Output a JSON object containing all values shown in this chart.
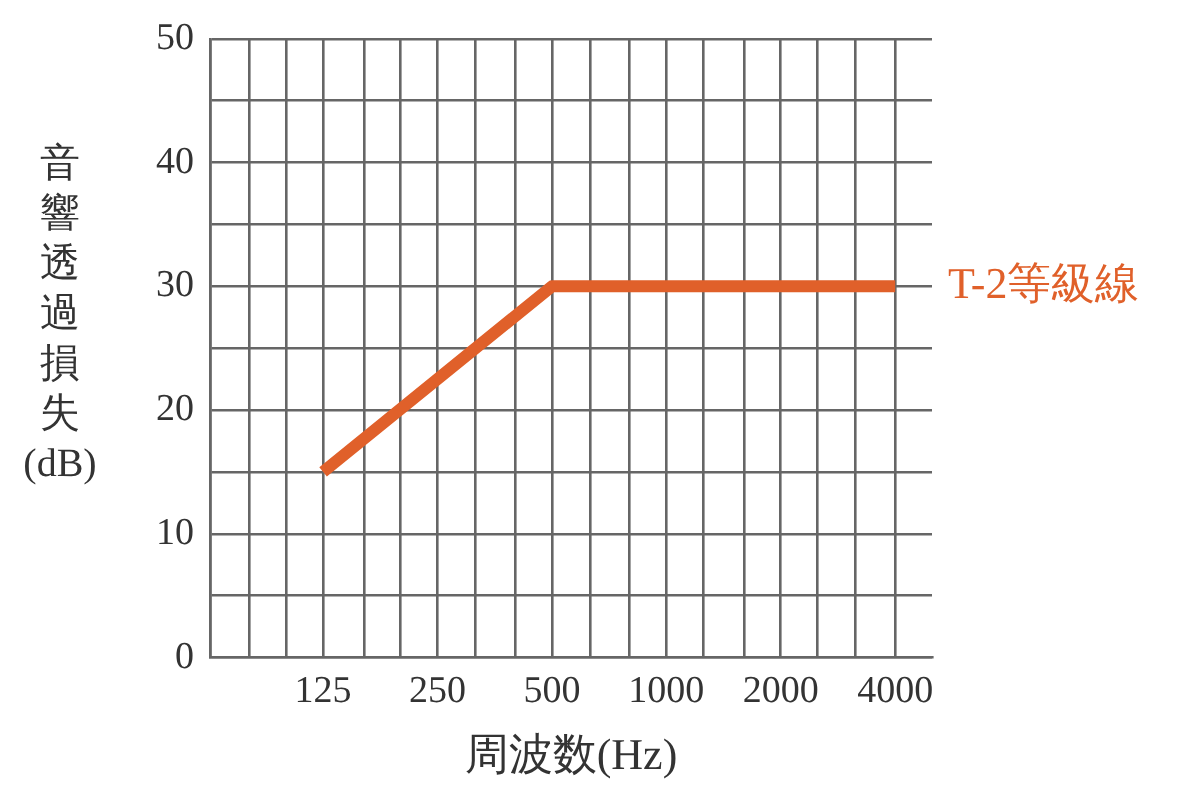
{
  "chart_data": {
    "type": "line",
    "xlabel": "周波数(Hz)",
    "ylabel": "音響透過損失(dB)",
    "x": [
      125,
      500,
      4000
    ],
    "series": [
      {
        "name": "T-2等級線",
        "color": "#e0602a",
        "values": [
          15,
          30,
          30
        ]
      }
    ],
    "log": "x",
    "xlim": [
      63,
      5000
    ],
    "xticks": [
      {
        "value": 63,
        "label": null
      },
      {
        "value": 80,
        "label": null
      },
      {
        "value": 100,
        "label": null
      },
      125,
      {
        "value": 160,
        "label": null
      },
      {
        "value": 200,
        "label": null
      },
      250,
      {
        "value": 315,
        "label": null
      },
      {
        "value": 400,
        "label": null
      },
      500,
      {
        "value": 630,
        "label": null
      },
      {
        "value": 800,
        "label": null
      },
      1000,
      {
        "value": 1250,
        "label": null
      },
      {
        "value": 1600,
        "label": null
      },
      2000,
      {
        "value": 2500,
        "label": null
      },
      {
        "value": 3150,
        "label": null
      },
      4000
    ],
    "ylim": [
      0,
      50
    ],
    "yticks": [
      0,
      {
        "value": 5,
        "label": null
      },
      10,
      {
        "value": 15,
        "label": null
      },
      20,
      {
        "value": 25,
        "label": null
      },
      30,
      {
        "value": 35,
        "label": null
      },
      40,
      {
        "value": 45,
        "label": null
      },
      50
    ],
    "grid": true,
    "legend": false,
    "marker": "none",
    "line_style": "solid"
  }
}
